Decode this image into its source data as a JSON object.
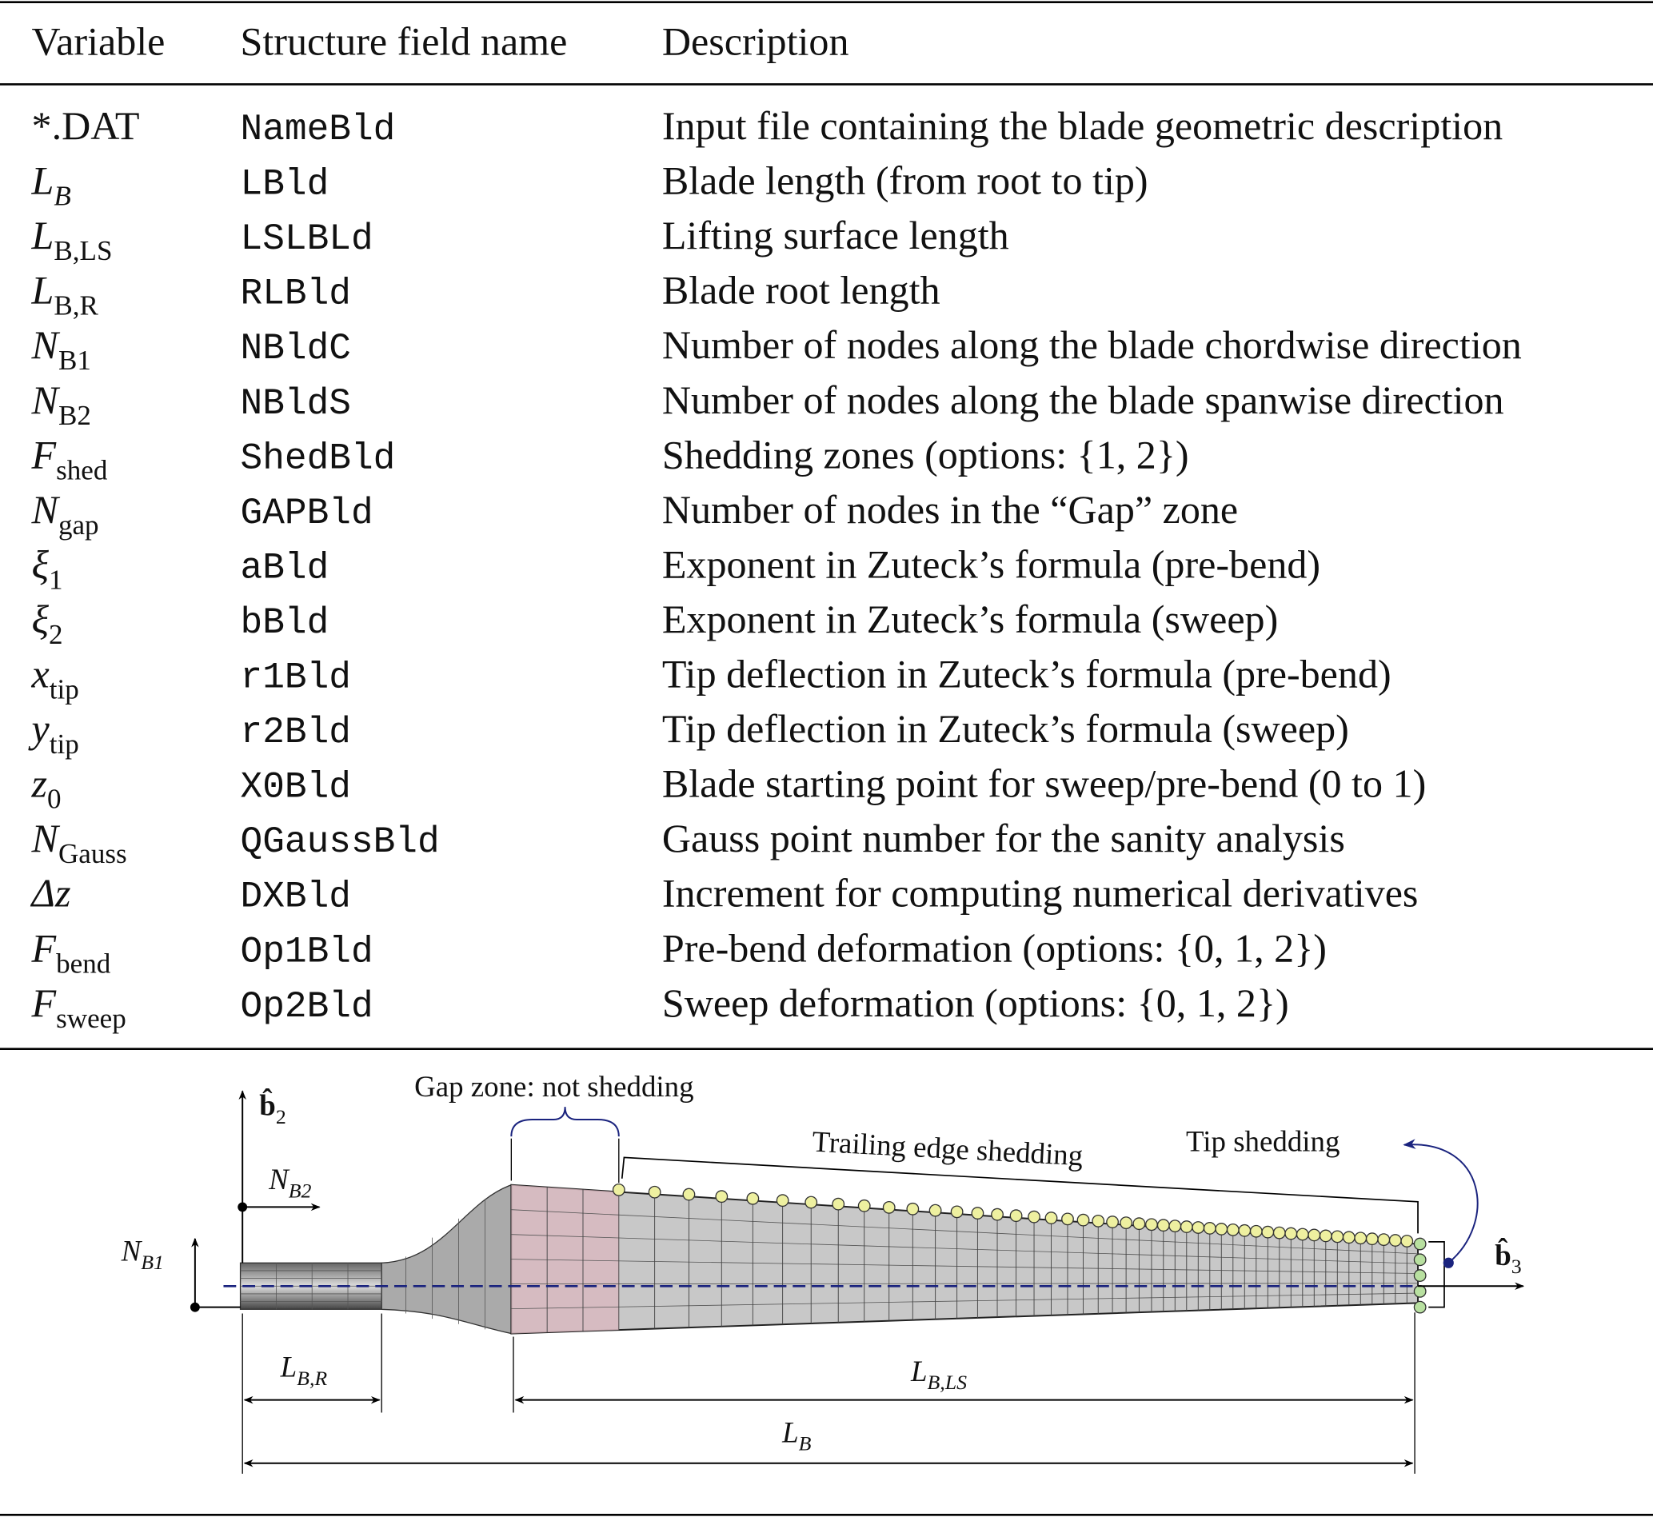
{
  "table": {
    "header": [
      "Variable",
      "Structure field name",
      "Description"
    ],
    "rows": [
      {
        "variable": {
          "base": "*.DAT"
        },
        "field": "NameBld",
        "description": "Input file containing the blade geometric description"
      },
      {
        "variable": {
          "base": "L",
          "sub": "B"
        },
        "field": "LBld",
        "description": "Blade length (from root to tip)"
      },
      {
        "variable": {
          "base": "L",
          "sub": "B,LS"
        },
        "field": "LSLBLd",
        "description": "Lifting surface length"
      },
      {
        "variable": {
          "base": "L",
          "sub": "B,R"
        },
        "field": "RLBld",
        "description": "Blade root length"
      },
      {
        "variable": {
          "base": "N",
          "sub": "B1"
        },
        "field": "NBldC",
        "description": "Number of nodes along the blade chordwise direction"
      },
      {
        "variable": {
          "base": "N",
          "sub": "B2"
        },
        "field": "NBldS",
        "description": "Number of nodes along the blade spanwise direction"
      },
      {
        "variable": {
          "base": "F",
          "sub": "shed"
        },
        "field": "ShedBld",
        "description": "Shedding zones (options: {1, 2})"
      },
      {
        "variable": {
          "base": "N",
          "sub": "gap"
        },
        "field": "GAPBld",
        "description": "Number of nodes in the “Gap” zone"
      },
      {
        "variable": {
          "base": "ξ",
          "sub": "1"
        },
        "field": "aBld",
        "description": "Exponent in Zuteck’s formula (pre-bend)"
      },
      {
        "variable": {
          "base": "ξ",
          "sub": "2"
        },
        "field": "bBld",
        "description": "Exponent in Zuteck’s formula (sweep)"
      },
      {
        "variable": {
          "base": "x",
          "sub": "tip"
        },
        "field": "r1Bld",
        "description": "Tip deflection in Zuteck’s formula (pre-bend)"
      },
      {
        "variable": {
          "base": "y",
          "sub": "tip"
        },
        "field": "r2Bld",
        "description": "Tip deflection in Zuteck’s formula (sweep)"
      },
      {
        "variable": {
          "base": "z",
          "sub": "0"
        },
        "field": "X0Bld",
        "description": "Blade starting point for sweep/pre-bend (0 to 1)"
      },
      {
        "variable": {
          "base": "N",
          "sub": "Gauss"
        },
        "field": "QGaussBld",
        "description": "Gauss point number for the sanity analysis"
      },
      {
        "variable": {
          "base": "Δz"
        },
        "field": "DXBld",
        "description": "Increment for computing numerical derivatives"
      },
      {
        "variable": {
          "base": "F",
          "sub": "bend"
        },
        "field": "Op1Bld",
        "description": "Pre-bend deformation (options: {0, 1, 2})"
      },
      {
        "variable": {
          "base": "F",
          "sub": "sweep"
        },
        "field": "Op2Bld",
        "description": "Sweep deformation (options: {0, 1, 2})"
      }
    ]
  },
  "figure": {
    "gap": "Gap zone: not shedding",
    "trailing": "Trailing edge shedding",
    "tip": "Tip shedding",
    "b2": {
      "base": "b̂",
      "sub": "2"
    },
    "b3": {
      "base": "b̂",
      "sub": "3"
    },
    "nb2": {
      "base": "N",
      "sub": "B2"
    },
    "nb1": {
      "base": "N",
      "sub": "B1"
    },
    "lbr": {
      "base": "L",
      "sub": "B,R"
    },
    "lbls": {
      "base": "L",
      "sub": "B,LS"
    },
    "lb": {
      "base": "L",
      "sub": "B"
    }
  }
}
